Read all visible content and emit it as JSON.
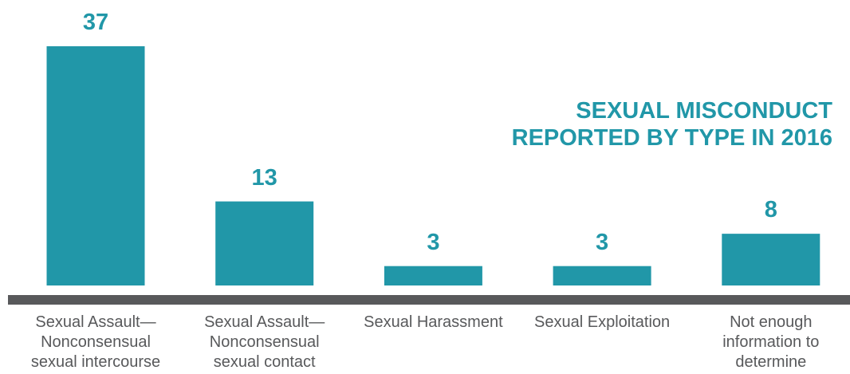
{
  "chart_data": {
    "type": "bar",
    "title": "SEXUAL MISCONDUCT REPORTED BY TYPE IN 2016",
    "categories": [
      "Sexual Assault—Nonconsensual sexual intercourse",
      "Sexual Assault—Nonconsensual sexual contact",
      "Sexual Harassment",
      "Sexual Exploitation",
      "Not enough information to determine"
    ],
    "values": [
      37,
      13,
      3,
      3,
      8
    ],
    "color": "#2197a8"
  }
}
